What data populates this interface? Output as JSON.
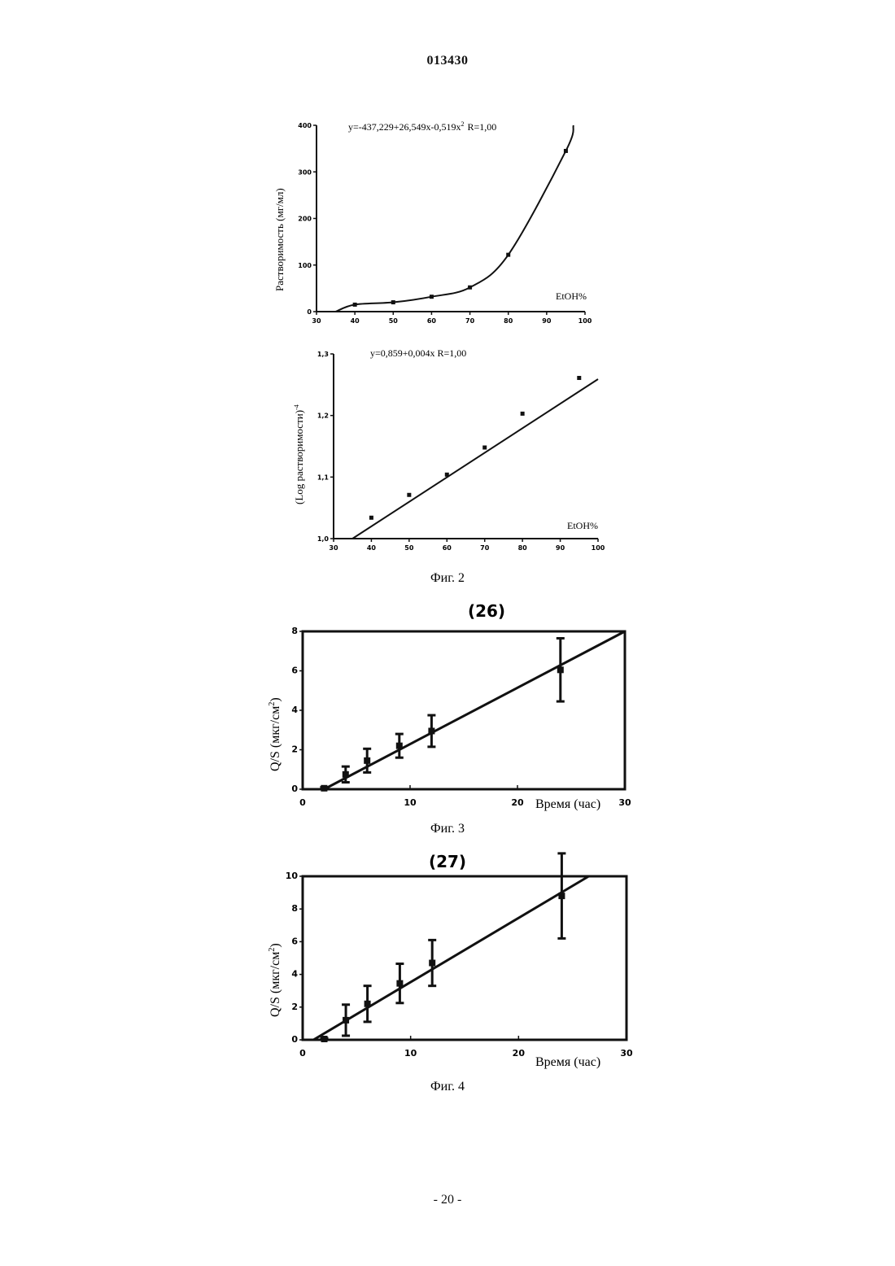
{
  "header": {
    "doc_number": "013430"
  },
  "footer": {
    "page_number": "- 20 -"
  },
  "figures": [
    {
      "caption": "Фиг. 2"
    },
    {
      "caption": "Фиг. 3",
      "panel_label": "(26)"
    },
    {
      "caption": "Фиг. 4",
      "panel_label": "(27)"
    }
  ],
  "chart_data": [
    {
      "type": "scatter",
      "equation": "y=-437,229+26,549x-0,519x",
      "equation_exp": "2",
      "equation_r": "R=1,00",
      "xlabel": "EtOH%",
      "ylabel": "Растворимость (мг/мл)",
      "xlim": [
        30,
        100
      ],
      "ylim": [
        0,
        400
      ],
      "xticks": [
        "30",
        "40",
        "50",
        "60",
        "70",
        "80",
        "90",
        "100"
      ],
      "yticks": [
        "0",
        "100",
        "200",
        "300",
        "400"
      ],
      "x": [
        40,
        50,
        60,
        70,
        80,
        95
      ],
      "y": [
        15,
        20,
        32,
        52,
        122,
        345
      ],
      "fit_curve": "smooth through points"
    },
    {
      "type": "scatter",
      "equation": "y=0,859+0,004x  R=1,00",
      "xlabel": "EtOH%",
      "ylabel": "(Log растворимости)",
      "ylabel_exp": "-4",
      "xlim": [
        30,
        100
      ],
      "ylim": [
        1.0,
        1.3
      ],
      "xticks": [
        "30",
        "40",
        "50",
        "60",
        "70",
        "80",
        "90",
        "100"
      ],
      "yticks": [
        "1,0",
        "1,1",
        "1,2",
        "1,3"
      ],
      "x": [
        40,
        50,
        60,
        70,
        80,
        95
      ],
      "y": [
        1.034,
        1.071,
        1.104,
        1.148,
        1.203,
        1.261
      ],
      "fit": {
        "intercept": 0.859,
        "slope": 0.004
      }
    },
    {
      "type": "scatter",
      "xlabel": "Время (час)",
      "ylabel": "Q/S  (мкг/см",
      "ylabel_exp": "2",
      "ylabel_end": ")",
      "xlim": [
        0,
        30
      ],
      "ylim": [
        0,
        8
      ],
      "xticks": [
        "0",
        "10",
        "20",
        "30"
      ],
      "yticks": [
        "0",
        "2",
        "4",
        "6",
        "8"
      ],
      "x": [
        2,
        4,
        6,
        9,
        12,
        24
      ],
      "y": [
        0.05,
        0.75,
        1.45,
        2.2,
        2.95,
        6.05
      ],
      "err": [
        0.05,
        0.4,
        0.6,
        0.6,
        0.8,
        1.6
      ],
      "fit": {
        "x0": 2,
        "y0": 0,
        "x1": 30,
        "y1": 8
      }
    },
    {
      "type": "scatter",
      "xlabel": "Время (час)",
      "ylabel": "Q/S  (мкг/см",
      "ylabel_exp": "2",
      "ylabel_end": ")",
      "xlim": [
        0,
        30
      ],
      "ylim": [
        0,
        10
      ],
      "xticks": [
        "0",
        "10",
        "20",
        "30"
      ],
      "yticks": [
        "0",
        "2",
        "4",
        "6",
        "8",
        "10"
      ],
      "x": [
        2,
        4,
        6,
        9,
        12,
        24
      ],
      "y": [
        0.05,
        1.2,
        2.2,
        3.45,
        4.7,
        8.8
      ],
      "err": [
        0.05,
        0.95,
        1.1,
        1.2,
        1.4,
        2.6
      ],
      "fit": {
        "x0": 1,
        "y0": 0,
        "x1": 26.5,
        "y1": 10
      }
    }
  ]
}
